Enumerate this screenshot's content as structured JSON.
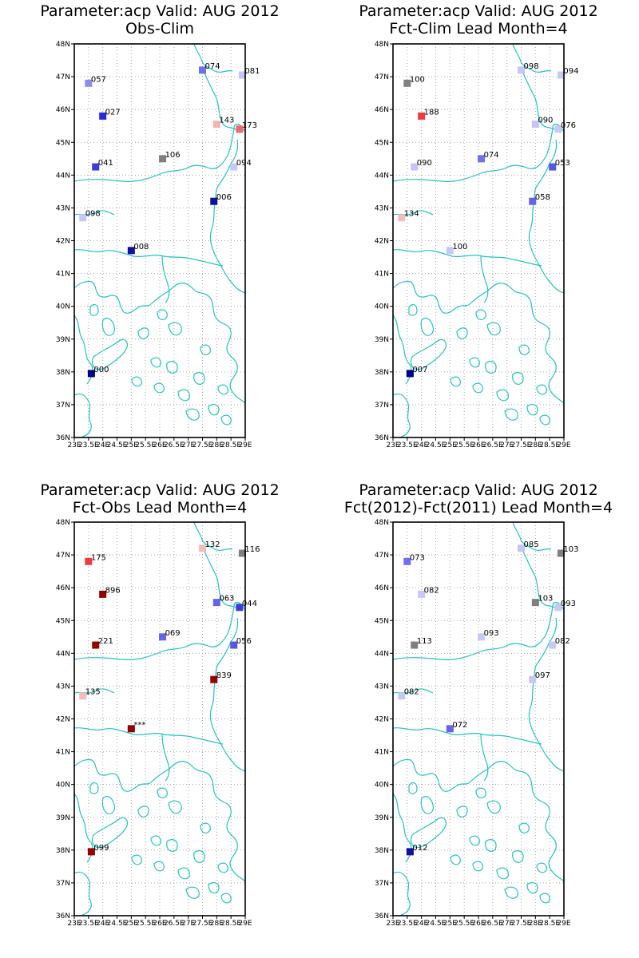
{
  "palette": {
    "coastline": "#22c4c4",
    "frame": "#000000",
    "grid": "#a8a8a8"
  },
  "axes": {
    "lat_range": [
      36,
      48
    ],
    "lon_range": [
      23,
      29
    ],
    "lat_ticks": [
      "36N",
      "37N",
      "38N",
      "39N",
      "40N",
      "41N",
      "42N",
      "43N",
      "44N",
      "45N",
      "46N",
      "47N",
      "48N"
    ],
    "lon_ticks": [
      "23E",
      "23.5E",
      "24E",
      "24.5E",
      "25E",
      "25.5E",
      "26E",
      "26.5E",
      "27E",
      "27.5E",
      "28E",
      "28.5E",
      "29E"
    ],
    "grid": true
  },
  "panels": [
    {
      "title_line1": "Parameter:acp Valid: AUG 2012",
      "title_line2": "Obs-Clim",
      "stations": [
        {
          "lon": 23.5,
          "lat": 46.8,
          "label": "057",
          "color": "#8c8cf0"
        },
        {
          "lon": 27.5,
          "lat": 47.2,
          "label": "074",
          "color": "#7070ee"
        },
        {
          "lon": 28.9,
          "lat": 47.05,
          "label": "081",
          "color": "#c4c4f6"
        },
        {
          "lon": 24.0,
          "lat": 45.8,
          "label": "027",
          "color": "#2a2add"
        },
        {
          "lon": 28.0,
          "lat": 45.55,
          "label": "143",
          "color": "#f4b4b4"
        },
        {
          "lon": 28.8,
          "lat": 45.4,
          "label": "173",
          "color": "#ef6a6a"
        },
        {
          "lon": 26.1,
          "lat": 44.5,
          "label": "106",
          "color": "#808080"
        },
        {
          "lon": 23.75,
          "lat": 44.25,
          "label": "041",
          "color": "#3c3ce0"
        },
        {
          "lon": 28.6,
          "lat": 44.25,
          "label": "094",
          "color": "#c8c8f6"
        },
        {
          "lon": 27.9,
          "lat": 43.2,
          "label": "006",
          "color": "#10109e"
        },
        {
          "lon": 23.3,
          "lat": 42.7,
          "label": "098",
          "color": "#c8c8f6"
        },
        {
          "lon": 25.0,
          "lat": 41.7,
          "label": "008",
          "color": "#10109e"
        },
        {
          "lon": 23.6,
          "lat": 37.95,
          "label": "000",
          "color": "#000086"
        }
      ]
    },
    {
      "title_line1": "Parameter:acp Valid: AUG 2012",
      "title_line2": "Fct-Clim Lead Month=4",
      "stations": [
        {
          "lon": 23.5,
          "lat": 46.8,
          "label": "100",
          "color": "#808080"
        },
        {
          "lon": 27.5,
          "lat": 47.2,
          "label": "098",
          "color": "#c8c8f6"
        },
        {
          "lon": 28.9,
          "lat": 47.05,
          "label": "094",
          "color": "#c8c8f6"
        },
        {
          "lon": 24.0,
          "lat": 45.8,
          "label": "188",
          "color": "#f03c3c"
        },
        {
          "lon": 28.0,
          "lat": 45.55,
          "label": "090",
          "color": "#c4c4f6"
        },
        {
          "lon": 28.8,
          "lat": 45.4,
          "label": "076",
          "color": "#c8c8f6"
        },
        {
          "lon": 26.1,
          "lat": 44.5,
          "label": "074",
          "color": "#7070ee"
        },
        {
          "lon": 23.75,
          "lat": 44.25,
          "label": "090",
          "color": "#c4c4f6"
        },
        {
          "lon": 28.6,
          "lat": 44.25,
          "label": "053",
          "color": "#5656e6"
        },
        {
          "lon": 27.9,
          "lat": 43.2,
          "label": "058",
          "color": "#6464ea"
        },
        {
          "lon": 23.3,
          "lat": 42.7,
          "label": "134",
          "color": "#f4bcbc"
        },
        {
          "lon": 25.0,
          "lat": 41.7,
          "label": "100",
          "color": "#c8c8f6"
        },
        {
          "lon": 23.6,
          "lat": 37.95,
          "label": "007",
          "color": "#000086"
        }
      ]
    },
    {
      "title_line1": "Parameter:acp Valid: AUG 2012",
      "title_line2": "Fct-Obs Lead Month=4",
      "stations": [
        {
          "lon": 23.5,
          "lat": 46.8,
          "label": "175",
          "color": "#f03c3c"
        },
        {
          "lon": 27.5,
          "lat": 47.2,
          "label": "132",
          "color": "#f4bcbc"
        },
        {
          "lon": 28.9,
          "lat": 47.05,
          "label": "116",
          "color": "#808080"
        },
        {
          "lon": 24.0,
          "lat": 45.8,
          "label": "896",
          "color": "#960000"
        },
        {
          "lon": 28.0,
          "lat": 45.55,
          "label": "063",
          "color": "#6464ea"
        },
        {
          "lon": 28.8,
          "lat": 45.4,
          "label": "044",
          "color": "#3c3ce0"
        },
        {
          "lon": 26.1,
          "lat": 44.5,
          "label": "069",
          "color": "#6464ea"
        },
        {
          "lon": 23.75,
          "lat": 44.25,
          "label": "221",
          "color": "#960000"
        },
        {
          "lon": 28.6,
          "lat": 44.25,
          "label": "056",
          "color": "#5656e6"
        },
        {
          "lon": 27.9,
          "lat": 43.2,
          "label": "839",
          "color": "#960000"
        },
        {
          "lon": 23.3,
          "lat": 42.7,
          "label": "135",
          "color": "#f4bcbc"
        },
        {
          "lon": 25.0,
          "lat": 41.7,
          "label": "***",
          "color": "#960000"
        },
        {
          "lon": 23.6,
          "lat": 37.95,
          "label": "099",
          "color": "#960000"
        }
      ]
    },
    {
      "title_line1": "Parameter:acp Valid: AUG 2012",
      "title_line2": "Fct(2012)-Fct(2011) Lead Month=4",
      "stations": [
        {
          "lon": 23.5,
          "lat": 46.8,
          "label": "073",
          "color": "#7070ee"
        },
        {
          "lon": 27.5,
          "lat": 47.2,
          "label": "085",
          "color": "#c4c4f6"
        },
        {
          "lon": 28.9,
          "lat": 47.05,
          "label": "103",
          "color": "#808080"
        },
        {
          "lon": 24.0,
          "lat": 45.8,
          "label": "082",
          "color": "#c8c8f6"
        },
        {
          "lon": 28.0,
          "lat": 45.55,
          "label": "103",
          "color": "#808080"
        },
        {
          "lon": 28.8,
          "lat": 45.4,
          "label": "093",
          "color": "#c8c8f6"
        },
        {
          "lon": 26.1,
          "lat": 44.5,
          "label": "093",
          "color": "#c8c8f6"
        },
        {
          "lon": 23.75,
          "lat": 44.25,
          "label": "113",
          "color": "#808080"
        },
        {
          "lon": 28.6,
          "lat": 44.25,
          "label": "082",
          "color": "#c8c8f6"
        },
        {
          "lon": 27.9,
          "lat": 43.2,
          "label": "097",
          "color": "#c8c8f6"
        },
        {
          "lon": 23.3,
          "lat": 42.7,
          "label": "082",
          "color": "#c8c8f6"
        },
        {
          "lon": 25.0,
          "lat": 41.7,
          "label": "072",
          "color": "#6464ea"
        },
        {
          "lon": 23.6,
          "lat": 37.95,
          "label": "012",
          "color": "#10109e"
        }
      ]
    }
  ]
}
